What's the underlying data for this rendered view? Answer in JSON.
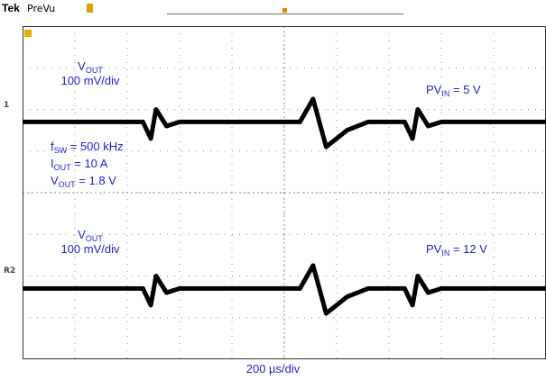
{
  "header": {
    "brand": "Tek",
    "mode": "PreVu"
  },
  "channels": {
    "ch1": "1",
    "ch2": "R2"
  },
  "annotations": {
    "top_vout_label": "V",
    "top_vout_sub": "OUT",
    "top_scale": "100 mV/div",
    "pvin_top_label": "PV",
    "pvin_top_sub": "IN",
    "pvin_top_value": " = 5 V",
    "fsw_label": "f",
    "fsw_sub": "SW",
    "fsw_value": " = 500 kHz",
    "iout_label": "I",
    "iout_sub": "OUT",
    "iout_value": " = 10 A",
    "vout_set_label": "V",
    "vout_set_sub": "OUT",
    "vout_set_value": " = 1.8 V",
    "bottom_vout_label": "V",
    "bottom_vout_sub": "OUT",
    "bottom_scale": "100 mV/div",
    "pvin_bottom_label": "PV",
    "pvin_bottom_sub": "IN",
    "pvin_bottom_value": " = 12 V"
  },
  "x_axis_label": "200 µs/div",
  "colors": {
    "trace": "#000000",
    "annotation": "#1f1fd1",
    "grid": "#8c8c8c",
    "brand_marker": "#d9a400"
  },
  "chart_data": {
    "type": "line",
    "grid": {
      "divisions_x": 10,
      "divisions_y": 8
    },
    "x_scale": "200 µs/div",
    "y_scale": "100 mV/div",
    "series": [
      {
        "name": "",
        "x": [
          0,
          2.3,
          2.45,
          2.55,
          2.75,
          3.0,
          5.3,
          5.55,
          5.8,
          6.2,
          6.6,
          7.3,
          7.45,
          7.55,
          7.75,
          8.0,
          10.0
        ],
        "y": [
          -0.2,
          -0.2,
          -0.6,
          0.1,
          -0.3,
          -0.2,
          -0.2,
          0.35,
          -0.8,
          -0.4,
          -0.2,
          -0.2,
          -0.6,
          0.1,
          -0.3,
          -0.2,
          -0.2
        ]
      },
      {
        "name": "",
        "x": [
          0,
          2.3,
          2.45,
          2.55,
          2.75,
          3.0,
          5.3,
          5.55,
          5.8,
          6.2,
          6.6,
          7.3,
          7.45,
          7.55,
          7.75,
          8.0,
          10.0
        ],
        "y": [
          -0.2,
          -0.2,
          -0.6,
          0.1,
          -0.3,
          -0.2,
          -0.2,
          0.35,
          -0.8,
          -0.4,
          -0.2,
          -0.2,
          -0.6,
          0.1,
          -0.3,
          -0.2,
          -0.2
        ]
      }
    ]
  }
}
